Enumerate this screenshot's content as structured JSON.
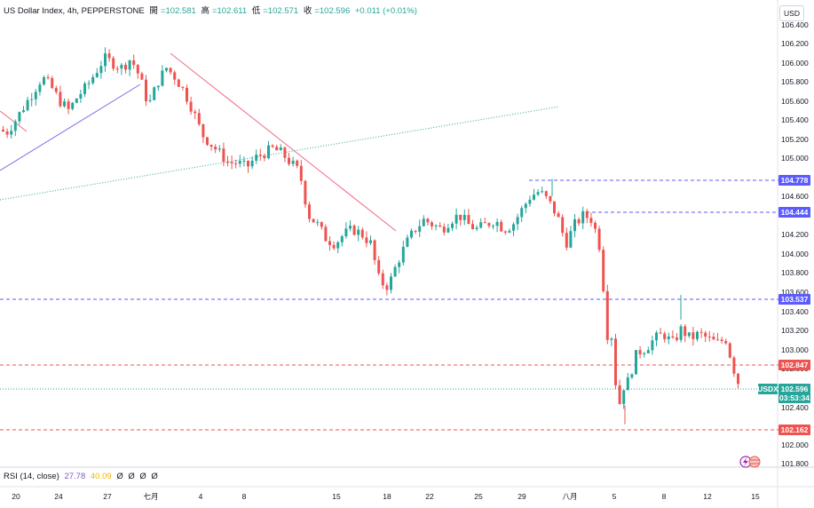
{
  "header": {
    "symbol": "US Dollar Index, 4h, PEPPERSTONE",
    "open_label": "開",
    "open_value": "=102.581",
    "high_label": "高",
    "high_value": "=102.611",
    "low_label": "低",
    "low_value": "=102.571",
    "close_label": "收",
    "close_value": "=102.596",
    "change": "+0.011 (+0.01%)"
  },
  "currency": "USD",
  "colors": {
    "up": "#26a69a",
    "down": "#ef5350",
    "blue_line": "#7b6fe8",
    "red_line": "#f06a82",
    "green_dotted": "#26a69a"
  },
  "price_axis": [
    "106.400",
    "106.200",
    "106.000",
    "105.800",
    "105.600",
    "105.400",
    "105.200",
    "105.000",
    "104.600",
    "104.200",
    "104.000",
    "103.800",
    "103.600",
    "103.400",
    "103.200",
    "103.000",
    "102.800",
    "102.400",
    "102.000",
    "101.800"
  ],
  "time_axis": [
    "20",
    "24",
    "27",
    "七月",
    "4",
    "8",
    "15",
    "18",
    "22",
    "25",
    "29",
    "八月",
    "5",
    "8",
    "12",
    "15"
  ],
  "levels": [
    {
      "label": "104.778",
      "color": "#5b5bff"
    },
    {
      "label": "104.444",
      "color": "#5b5bff"
    },
    {
      "label": "103.537",
      "color": "#5b5bff"
    },
    {
      "label": "102.847",
      "color": "#ef5350"
    },
    {
      "label": "102.162",
      "color": "#ef5350"
    }
  ],
  "current_price": {
    "symbol": "USDX",
    "price": "102.596",
    "countdown": "03:53:34"
  },
  "rsi": {
    "label": "RSI (14, close)",
    "value1": "27.78",
    "value2": "40.09",
    "extras": [
      "Ø",
      "Ø",
      "Ø",
      "Ø"
    ]
  },
  "chart_data": {
    "type": "candlestick",
    "title": "US Dollar Index, 4h, PEPPERSTONE",
    "ylim": [
      101.75,
      106.48
    ],
    "y_ticks": [
      106.4,
      106.2,
      106.0,
      105.8,
      105.6,
      105.4,
      105.2,
      105.0,
      104.6,
      104.2,
      104.0,
      103.8,
      103.6,
      103.4,
      103.2,
      103.0,
      102.8,
      102.4,
      102.0,
      101.8
    ],
    "x_ticks": [
      "20",
      "24",
      "27",
      "七月",
      "4",
      "8",
      "15",
      "18",
      "22",
      "25",
      "29",
      "八月",
      "5",
      "8",
      "12",
      "15"
    ],
    "waypoints": [
      [
        0,
        105.3
      ],
      [
        10,
        105.27
      ],
      [
        20,
        105.4
      ],
      [
        30,
        105.55
      ],
      [
        40,
        105.7
      ],
      [
        50,
        105.85
      ],
      [
        60,
        105.75
      ],
      [
        70,
        105.6
      ],
      [
        80,
        105.5
      ],
      [
        90,
        105.65
      ],
      [
        100,
        105.75
      ],
      [
        110,
        105.9
      ],
      [
        120,
        106.05
      ],
      [
        130,
        106.0
      ],
      [
        140,
        105.95
      ],
      [
        150,
        106.05
      ],
      [
        160,
        105.85
      ],
      [
        170,
        105.55
      ],
      [
        180,
        105.8
      ],
      [
        190,
        105.95
      ],
      [
        200,
        105.85
      ],
      [
        210,
        105.7
      ],
      [
        220,
        105.5
      ],
      [
        230,
        105.25
      ],
      [
        240,
        105.15
      ],
      [
        250,
        105.05
      ],
      [
        260,
        104.95
      ],
      [
        270,
        104.95
      ],
      [
        280,
        104.9
      ],
      [
        290,
        105.0
      ],
      [
        300,
        105.05
      ],
      [
        310,
        105.1
      ],
      [
        320,
        105.05
      ],
      [
        330,
        104.95
      ],
      [
        340,
        104.85
      ],
      [
        350,
        104.4
      ],
      [
        360,
        104.3
      ],
      [
        370,
        104.15
      ],
      [
        380,
        104.1
      ],
      [
        390,
        104.2
      ],
      [
        400,
        104.25
      ],
      [
        410,
        104.2
      ],
      [
        420,
        104.1
      ],
      [
        430,
        103.7
      ],
      [
        440,
        103.65
      ],
      [
        450,
        103.9
      ],
      [
        460,
        104.1
      ],
      [
        470,
        104.25
      ],
      [
        480,
        104.35
      ],
      [
        490,
        104.3
      ],
      [
        500,
        104.25
      ],
      [
        510,
        104.35
      ],
      [
        520,
        104.4
      ],
      [
        530,
        104.3
      ],
      [
        540,
        104.25
      ],
      [
        550,
        104.3
      ],
      [
        560,
        104.35
      ],
      [
        570,
        104.25
      ],
      [
        580,
        104.3
      ],
      [
        590,
        104.45
      ],
      [
        600,
        104.6
      ],
      [
        610,
        104.65
      ],
      [
        620,
        104.55
      ],
      [
        630,
        104.4
      ],
      [
        640,
        104.1
      ],
      [
        650,
        104.3
      ],
      [
        660,
        104.4
      ],
      [
        670,
        104.35
      ],
      [
        680,
        104.0
      ],
      [
        685,
        103.2
      ],
      [
        690,
        103.05
      ],
      [
        695,
        102.7
      ],
      [
        700,
        102.4
      ],
      [
        705,
        102.6
      ],
      [
        710,
        102.65
      ],
      [
        720,
        102.95
      ],
      [
        730,
        103.0
      ],
      [
        740,
        103.1
      ],
      [
        750,
        103.15
      ],
      [
        760,
        103.05
      ],
      [
        770,
        103.2
      ],
      [
        780,
        103.1
      ],
      [
        790,
        103.15
      ],
      [
        800,
        103.1
      ],
      [
        810,
        103.05
      ],
      [
        820,
        103.1
      ],
      [
        830,
        102.75
      ],
      [
        836,
        102.59
      ]
    ]
  }
}
